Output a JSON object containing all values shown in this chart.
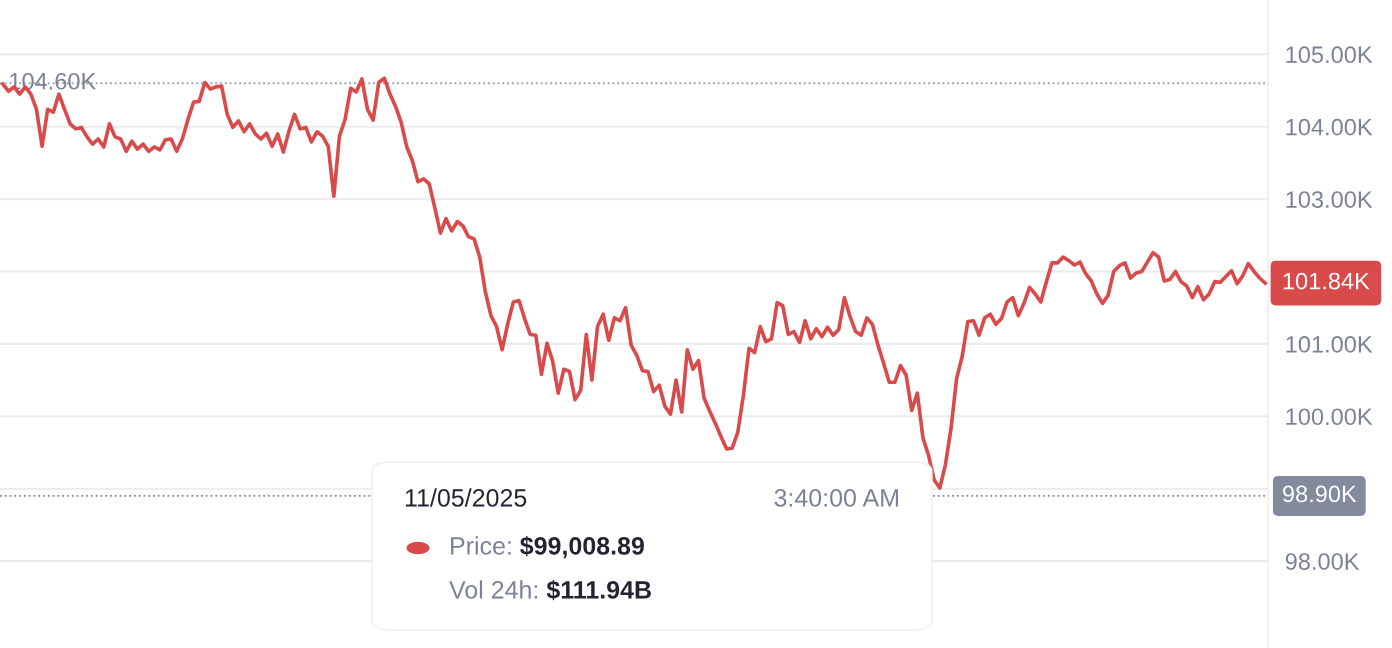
{
  "chart_data": {
    "type": "line",
    "categories": [
      null,
      null,
      null,
      null,
      null,
      null,
      null,
      null,
      null,
      null,
      null,
      null,
      null,
      null,
      null,
      null,
      null,
      null,
      null,
      null,
      null,
      null,
      null,
      null,
      null,
      null,
      null,
      null,
      null,
      null,
      null,
      null,
      null,
      null,
      null,
      null,
      null,
      null,
      null,
      null,
      null,
      null,
      null,
      null,
      null,
      null,
      null,
      null,
      null,
      null,
      null,
      null,
      null,
      null,
      null,
      null,
      null,
      null,
      null,
      null,
      null,
      null,
      null,
      null,
      null,
      null,
      null,
      null,
      null,
      null,
      null,
      null,
      null,
      null,
      null,
      null,
      null,
      null,
      null,
      null,
      null,
      null,
      null,
      null,
      null,
      null,
      null,
      null,
      null,
      null,
      null,
      null,
      null,
      null,
      null,
      null,
      null,
      null,
      null,
      null,
      null,
      null,
      null,
      null,
      null,
      null,
      null,
      null,
      null,
      null,
      null,
      null,
      null,
      null,
      null,
      null,
      null,
      null,
      null,
      null,
      null,
      null,
      null,
      null,
      null,
      null,
      null,
      null,
      null,
      null,
      null,
      null,
      null,
      null,
      null,
      null,
      null,
      null,
      null,
      null,
      null,
      null,
      null,
      null,
      null,
      null,
      null,
      null,
      null,
      null,
      null,
      null,
      null,
      null,
      null,
      null,
      null,
      null,
      null,
      null,
      null,
      null,
      null,
      null,
      null,
      null,
      null,
      null,
      null,
      null,
      null,
      null,
      null,
      null,
      null,
      null,
      null,
      null,
      null,
      null,
      null,
      null,
      null,
      null,
      null,
      null,
      null,
      null,
      null,
      null,
      null,
      null,
      null,
      null,
      null,
      null,
      null,
      null,
      null,
      null,
      null,
      null,
      null,
      null,
      null,
      null,
      null,
      null,
      null,
      null,
      null,
      null,
      null,
      null,
      null,
      null,
      null,
      null,
      null,
      null,
      null,
      null,
      null,
      null,
      null,
      null
    ],
    "series": [
      {
        "color": "#d94a4a",
        "values": [
          104.59,
          104.49,
          104.55,
          104.45,
          104.55,
          104.45,
          104.24,
          103.73,
          104.24,
          104.2,
          104.45,
          104.24,
          104.04,
          103.97,
          103.99,
          103.86,
          103.76,
          103.83,
          103.72,
          104.04,
          103.86,
          103.83,
          103.66,
          103.8,
          103.69,
          103.76,
          103.66,
          103.72,
          103.68,
          103.82,
          103.83,
          103.66,
          103.83,
          104.1,
          104.34,
          104.35,
          104.61,
          104.52,
          104.55,
          104.56,
          104.17,
          103.99,
          104.08,
          103.93,
          104.04,
          103.9,
          103.83,
          103.91,
          103.73,
          103.9,
          103.65,
          103.94,
          104.17,
          103.97,
          103.99,
          103.79,
          103.93,
          103.87,
          103.73,
          103.04,
          103.87,
          104.1,
          104.53,
          104.48,
          104.66,
          104.24,
          104.09,
          104.61,
          104.67,
          104.45,
          104.28,
          104.06,
          103.72,
          103.53,
          103.24,
          103.28,
          103.21,
          102.88,
          102.53,
          102.73,
          102.56,
          102.69,
          102.63,
          102.48,
          102.45,
          102.2,
          101.72,
          101.39,
          101.24,
          100.92,
          101.28,
          101.58,
          101.6,
          101.35,
          101.13,
          101.12,
          100.58,
          101.01,
          100.76,
          100.32,
          100.65,
          100.62,
          100.23,
          100.36,
          101.13,
          100.5,
          101.24,
          101.41,
          101.05,
          101.36,
          101.32,
          101.5,
          100.98,
          100.84,
          100.63,
          100.62,
          100.34,
          100.43,
          100.14,
          100.03,
          100.5,
          100.06,
          100.92,
          100.65,
          100.77,
          100.25,
          100.07,
          99.9,
          99.72,
          99.55,
          99.56,
          99.78,
          100.29,
          100.94,
          100.88,
          101.24,
          101.03,
          101.07,
          101.57,
          101.53,
          101.13,
          101.17,
          101.02,
          101.32,
          101.07,
          101.21,
          101.1,
          101.23,
          101.12,
          101.2,
          101.64,
          101.38,
          101.17,
          101.12,
          101.36,
          101.27,
          100.98,
          100.73,
          100.47,
          100.47,
          100.7,
          100.57,
          100.08,
          100.32,
          99.7,
          99.46,
          99.12,
          99.01,
          99.33,
          99.83,
          100.52,
          100.83,
          101.31,
          101.32,
          101.12,
          101.36,
          101.41,
          101.27,
          101.35,
          101.58,
          101.64,
          101.39,
          101.56,
          101.78,
          101.69,
          101.58,
          101.86,
          102.12,
          102.12,
          102.2,
          102.15,
          102.09,
          102.13,
          101.97,
          101.87,
          101.69,
          101.56,
          101.67,
          102.0,
          102.08,
          102.12,
          101.91,
          101.98,
          102.0,
          102.13,
          102.26,
          102.2,
          101.87,
          101.89,
          102.0,
          101.86,
          101.8,
          101.64,
          101.79,
          101.61,
          101.69,
          101.86,
          101.85,
          101.93,
          102.01,
          101.83,
          101.94,
          102.11,
          102.0,
          101.91,
          101.84
        ]
      }
    ],
    "ylim": [
      96.8,
      105.75
    ],
    "yticks": [
      {
        "value": 98,
        "label": "98.00K"
      },
      {
        "value": 99,
        "label": null
      },
      {
        "value": 100,
        "label": "100.00K"
      },
      {
        "value": 101,
        "label": "101.00K"
      },
      {
        "value": 102,
        "label": null
      },
      {
        "value": 103,
        "label": "103.00K"
      },
      {
        "value": 104,
        "label": "104.00K"
      },
      {
        "value": 105,
        "label": "105.00K"
      }
    ],
    "grid": "y",
    "tick_labels": "y",
    "ref_lines": [
      {
        "axis": "y",
        "value": 104.6,
        "label": "104.60K",
        "line_style": "dotted"
      },
      {
        "axis": "y",
        "value": 98.9,
        "label": "98.90K",
        "color": "#838a9c",
        "line_style": "dotted"
      }
    ],
    "annotations": [
      "101.84K",
      "11/05/2025",
      "3:40:00 AM",
      "Price: $99,008.89",
      "Vol 24h: $111.94B"
    ]
  }
}
